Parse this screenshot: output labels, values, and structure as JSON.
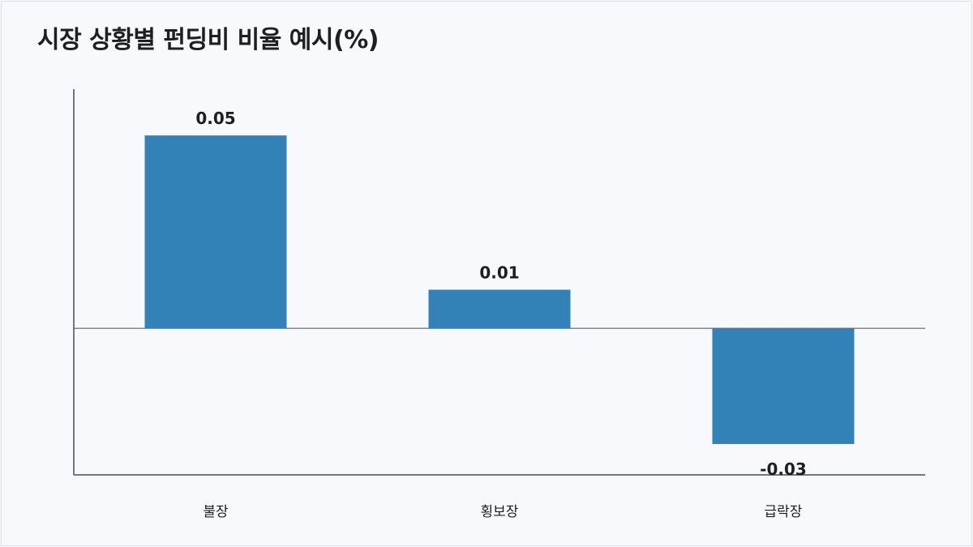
{
  "chart_data": {
    "type": "bar",
    "title": "시장 상황별 펀딩비 비율 예시(%)",
    "categories": [
      "불장",
      "횡보장",
      "급락장"
    ],
    "values": [
      0.05,
      0.01,
      -0.03
    ],
    "value_labels": [
      "0.05",
      "0.01",
      "-0.03"
    ],
    "xlabel": "",
    "ylabel": "",
    "ylim": [
      -0.038,
      0.062
    ],
    "grid": false,
    "bar_color": "#3282b8",
    "axis_color": "#4a4a55"
  }
}
